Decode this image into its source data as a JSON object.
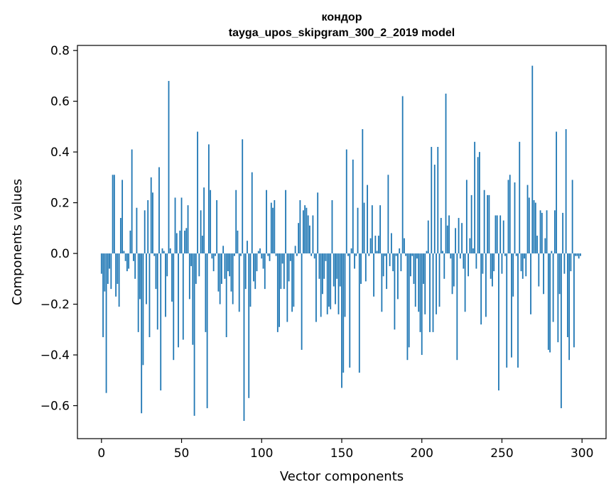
{
  "chart_data": {
    "type": "bar",
    "title": "кондор",
    "subtitle": "tayga_upos_skipgram_300_2_2019 model",
    "xlabel": "Vector components",
    "ylabel": "Components values",
    "xlim": [
      -15,
      315
    ],
    "ylim": [
      -0.73,
      0.82
    ],
    "xticks": [
      0,
      50,
      100,
      150,
      200,
      250,
      300
    ],
    "xtick_labels": [
      "0",
      "50",
      "100",
      "150",
      "200",
      "250",
      "300"
    ],
    "yticks": [
      -0.6,
      -0.4,
      -0.2,
      0.0,
      0.2,
      0.4,
      0.6,
      0.8
    ],
    "ytick_labels": [
      "−0.6",
      "−0.4",
      "−0.2",
      "0.0",
      "0.2",
      "0.4",
      "0.6",
      "0.8"
    ],
    "grid": false,
    "bar_color": "#1f77b4",
    "values": [
      -0.08,
      -0.33,
      -0.15,
      -0.55,
      -0.12,
      -0.06,
      -0.14,
      0.31,
      0.31,
      -0.17,
      -0.12,
      -0.21,
      0.14,
      0.29,
      0.01,
      -0.03,
      -0.07,
      -0.06,
      0.09,
      0.41,
      -0.03,
      -0.1,
      0.18,
      -0.31,
      -0.18,
      -0.63,
      -0.44,
      0.17,
      -0.2,
      0.21,
      -0.33,
      0.3,
      0.24,
      -0.01,
      -0.14,
      -0.3,
      0.34,
      -0.54,
      0.02,
      0.01,
      -0.25,
      -0.09,
      0.68,
      0.02,
      -0.19,
      -0.42,
      0.22,
      0.08,
      -0.37,
      0.09,
      0.22,
      -0.34,
      0.09,
      0.1,
      0.19,
      -0.18,
      -0.05,
      -0.36,
      -0.64,
      -0.12,
      0.48,
      -0.09,
      0.17,
      0.07,
      0.26,
      -0.31,
      -0.61,
      0.43,
      0.25,
      -0.02,
      -0.07,
      -0.01,
      0.21,
      -0.15,
      -0.2,
      -0.12,
      0.03,
      -0.1,
      -0.33,
      -0.07,
      -0.09,
      -0.15,
      -0.2,
      -0.01,
      0.25,
      0.09,
      -0.23,
      -0.01,
      0.45,
      -0.66,
      -0.14,
      0.05,
      -0.57,
      -0.21,
      0.32,
      -0.11,
      -0.14,
      -0.07,
      0.01,
      0.02,
      -0.02,
      -0.06,
      -0.14,
      0.25,
      -0.01,
      -0.03,
      0.2,
      0.18,
      0.21,
      -0.01,
      -0.31,
      -0.29,
      -0.14,
      -0.04,
      -0.14,
      0.25,
      -0.27,
      -0.11,
      -0.03,
      -0.23,
      -0.21,
      0.03,
      -0.01,
      0.12,
      0.21,
      -0.38,
      0.17,
      0.19,
      0.18,
      0.15,
      0.11,
      -0.01,
      0.15,
      -0.02,
      -0.27,
      0.24,
      -0.1,
      -0.25,
      -0.16,
      -0.1,
      -0.03,
      -0.24,
      -0.21,
      -0.22,
      0.21,
      -0.13,
      -0.2,
      -0.1,
      -0.24,
      -0.13,
      -0.53,
      -0.47,
      -0.25,
      0.41,
      -0.01,
      -0.45,
      0.02,
      0.37,
      -0.06,
      -0.01,
      0.18,
      -0.47,
      -0.12,
      0.49,
      0.2,
      -0.11,
      0.27,
      -0.01,
      0.06,
      0.19,
      -0.17,
      0.07,
      0.01,
      0.07,
      0.19,
      -0.23,
      -0.09,
      -0.01,
      -0.14,
      0.31,
      -0.05,
      0.08,
      -0.07,
      -0.3,
      -0.01,
      -0.18,
      0.02,
      -0.07,
      0.62,
      0.06,
      -0.01,
      -0.42,
      -0.37,
      -0.09,
      -0.01,
      -0.12,
      -0.21,
      -0.02,
      -0.23,
      -0.31,
      -0.4,
      -0.12,
      -0.24,
      0.01,
      0.13,
      -0.31,
      0.42,
      -0.31,
      0.35,
      -0.24,
      0.42,
      -0.21,
      0.14,
      0.01,
      -0.1,
      0.63,
      0.11,
      0.15,
      -0.02,
      -0.16,
      -0.13,
      0.1,
      -0.42,
      0.14,
      -0.02,
      0.12,
      -0.06,
      -0.23,
      0.29,
      -0.09,
      0.06,
      0.23,
      0.02,
      0.44,
      -0.06,
      0.38,
      0.4,
      -0.28,
      -0.08,
      0.25,
      -0.25,
      0.23,
      0.23,
      -0.1,
      -0.13,
      -0.07,
      0.15,
      0.15,
      -0.54,
      0.15,
      -0.08,
      0.13,
      -0.01,
      -0.45,
      0.29,
      0.31,
      -0.41,
      -0.17,
      0.28,
      -0.01,
      -0.45,
      0.44,
      -0.07,
      -0.1,
      -0.02,
      -0.09,
      0.27,
      0.22,
      -0.24,
      0.74,
      0.21,
      0.2,
      0.07,
      -0.13,
      0.17,
      0.16,
      -0.16,
      0.06,
      0.17,
      -0.38,
      -0.39,
      0.01,
      -0.27,
      0.17,
      0.48,
      -0.35,
      -0.16,
      -0.61,
      0.16,
      -0.08,
      0.49,
      -0.33,
      -0.42,
      -0.07,
      0.29,
      -0.37,
      -0.01,
      -0.01,
      -0.02,
      -0.01
    ]
  }
}
